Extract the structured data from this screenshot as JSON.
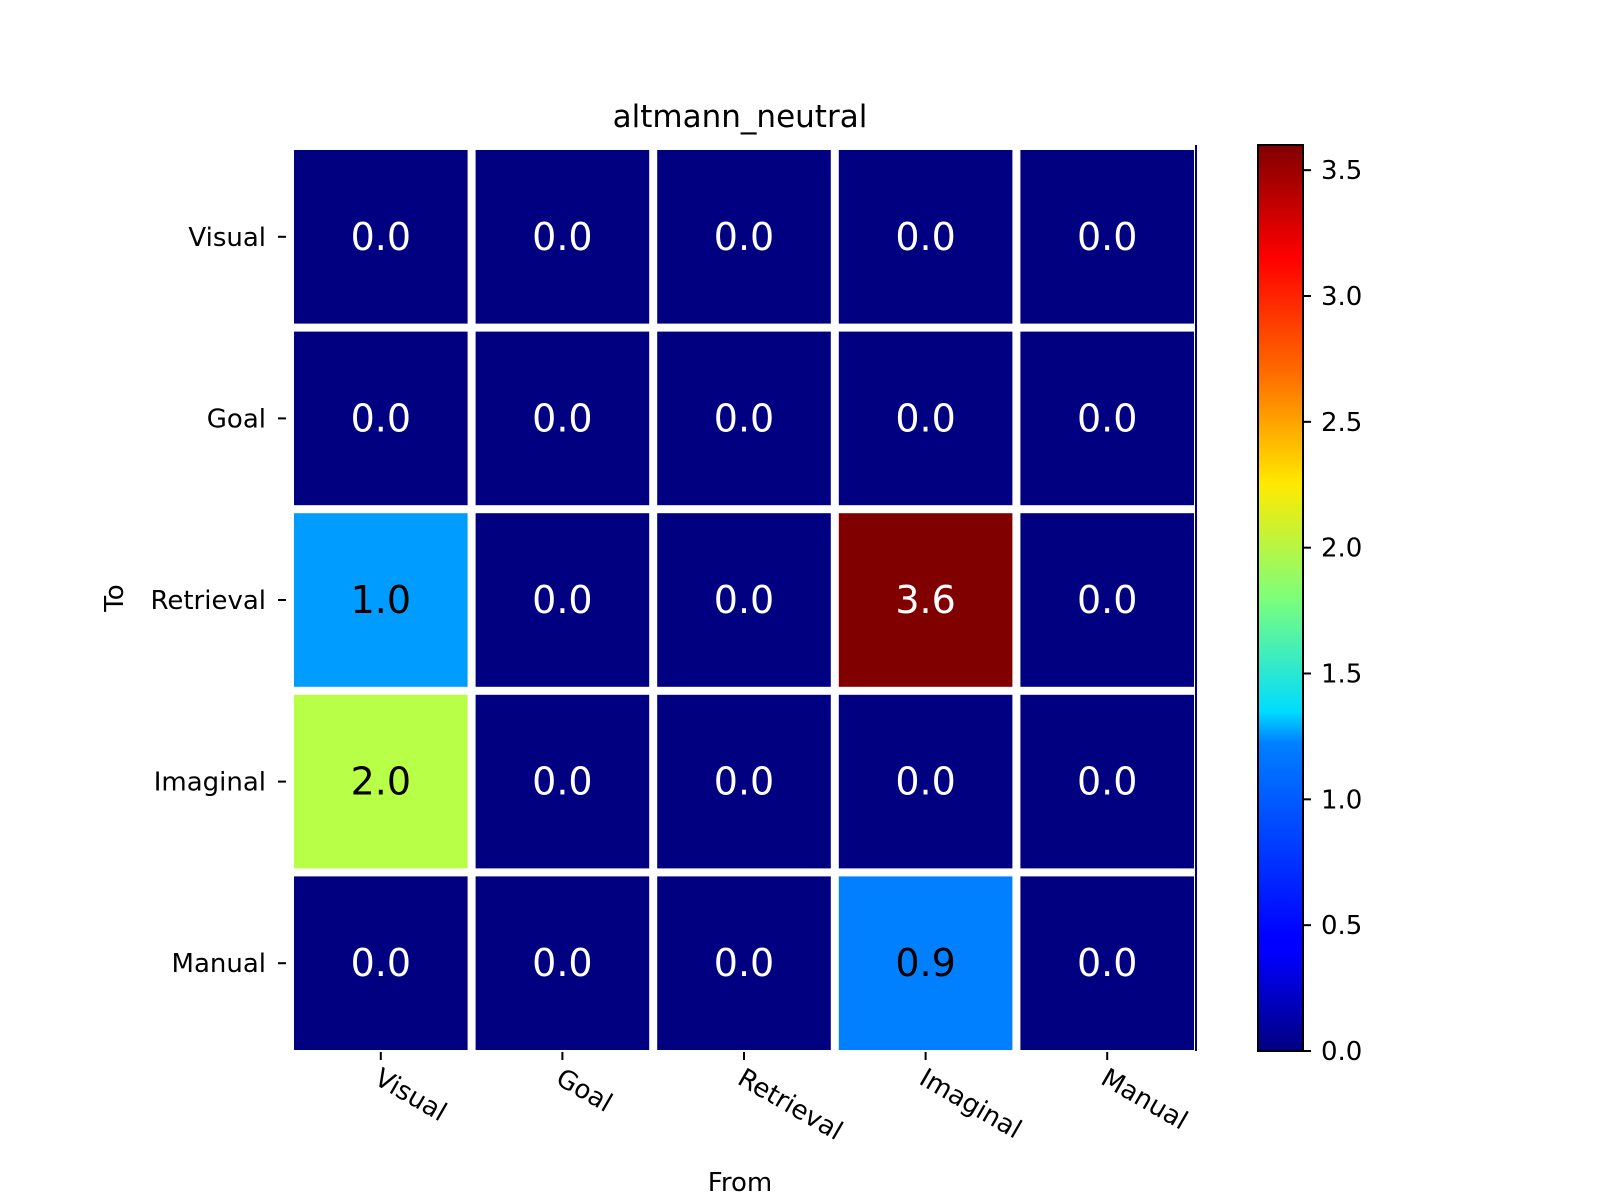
{
  "chart_data": {
    "type": "heatmap",
    "title": "altmann_neutral",
    "xlabel": "From",
    "ylabel": "To",
    "x_categories": [
      "Visual",
      "Goal",
      "Retrieval",
      "Imaginal",
      "Manual"
    ],
    "y_categories": [
      "Visual",
      "Goal",
      "Retrieval",
      "Imaginal",
      "Manual"
    ],
    "values": [
      [
        0.0,
        0.0,
        0.0,
        0.0,
        0.0
      ],
      [
        0.0,
        0.0,
        0.0,
        0.0,
        0.0
      ],
      [
        1.0,
        0.0,
        0.0,
        3.6,
        0.0
      ],
      [
        2.0,
        0.0,
        0.0,
        0.0,
        0.0
      ],
      [
        0.0,
        0.0,
        0.0,
        0.9,
        0.0
      ]
    ],
    "value_labels": [
      [
        "0.0",
        "0.0",
        "0.0",
        "0.0",
        "0.0"
      ],
      [
        "0.0",
        "0.0",
        "0.0",
        "0.0",
        "0.0"
      ],
      [
        "1.0",
        "0.0",
        "0.0",
        "3.6",
        "0.0"
      ],
      [
        "2.0",
        "0.0",
        "0.0",
        "0.0",
        "0.0"
      ],
      [
        "0.0",
        "0.0",
        "0.0",
        "0.9",
        "0.0"
      ]
    ],
    "colormap": "jet",
    "colorbar": {
      "range": [
        0.0,
        3.6
      ],
      "ticks": [
        0.0,
        0.5,
        1.0,
        1.5,
        2.0,
        2.5,
        3.0,
        3.5
      ],
      "tick_labels": [
        "0.0",
        "0.5",
        "1.0",
        "1.5",
        "2.0",
        "2.5",
        "3.0",
        "3.5"
      ]
    },
    "grid": false,
    "cell_separator_color": "#ffffff"
  }
}
